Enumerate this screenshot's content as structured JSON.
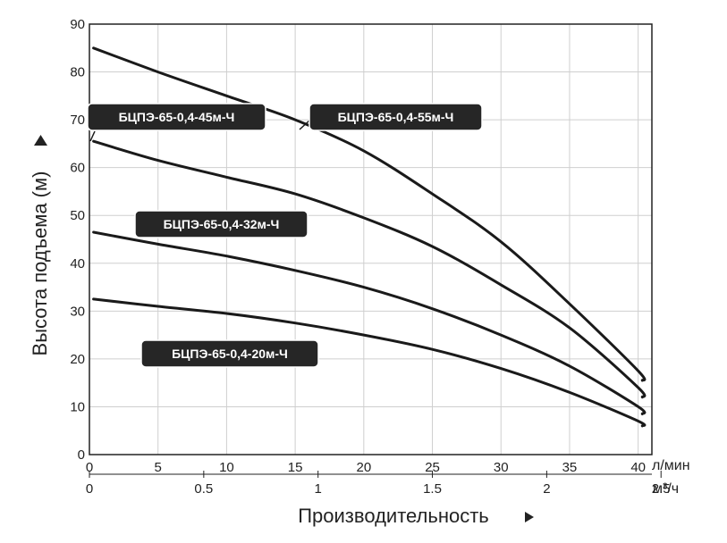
{
  "chart_data": {
    "type": "line",
    "ylabel": "Высота подъема (м)",
    "xlabel": "Производительность",
    "x_unit_primary": "л/мин",
    "x_unit_secondary": "м³/ч",
    "ylim": [
      0,
      90
    ],
    "xlim": [
      0,
      41
    ],
    "y_ticks": [
      "0",
      "10",
      "20",
      "30",
      "40",
      "50",
      "60",
      "70",
      "80",
      "90"
    ],
    "x_ticks_primary": [
      "0",
      "5",
      "10",
      "15",
      "20",
      "25",
      "30",
      "35",
      "40"
    ],
    "x_ticks_secondary": [
      "0",
      "0.5",
      "1",
      "1.5",
      "2",
      "2.5"
    ],
    "grid": true,
    "series": [
      {
        "name": "БЦПЭ-65-0,4-55м-Ч",
        "x": [
          0.3,
          5,
          10,
          15,
          20,
          25,
          30,
          35,
          40,
          40.3
        ],
        "y": [
          85,
          80,
          75,
          70,
          63.5,
          54.5,
          44.5,
          31.5,
          17.5,
          15.5
        ]
      },
      {
        "name": "БЦПЭ-65-0,4-45м-Ч",
        "x": [
          0.3,
          5,
          10,
          15,
          20,
          25,
          30,
          35,
          40,
          40.3
        ],
        "y": [
          65.5,
          61.5,
          58,
          54.5,
          49.5,
          43.5,
          35.5,
          26.5,
          14,
          12
        ]
      },
      {
        "name": "БЦПЭ-65-0,4-32м-Ч",
        "x": [
          0.3,
          5,
          10,
          15,
          20,
          25,
          30,
          35,
          40,
          40.3
        ],
        "y": [
          46.5,
          44,
          41.5,
          38.5,
          35,
          30.5,
          25,
          18.5,
          10,
          8.5
        ]
      },
      {
        "name": "БЦПЭ-65-0,4-20м-Ч",
        "x": [
          0.3,
          5,
          10,
          15,
          20,
          25,
          30,
          35,
          40,
          40.3
        ],
        "y": [
          32.5,
          31,
          29.5,
          27.5,
          25,
          22,
          18,
          13,
          7,
          6
        ]
      }
    ]
  }
}
